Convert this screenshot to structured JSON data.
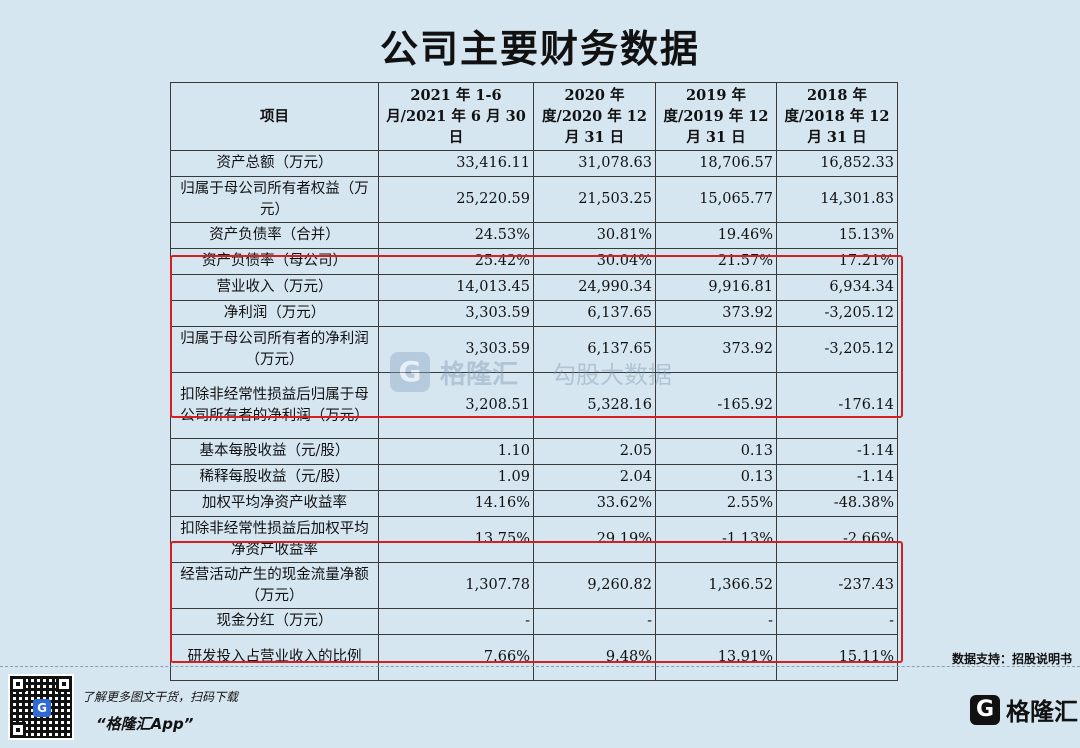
{
  "title": "公司主要财务数据",
  "table": {
    "headers": [
      "项目",
      "2021 年 1-6 月/2021 年 6 月 30 日",
      "2020 年度/2020 年 12 月 31 日",
      "2019 年度/2019 年 12 月 31 日",
      "2018 年度/2018 年 12 月 31 日"
    ],
    "rows": [
      {
        "label": "资产总额（万元）",
        "values": [
          "33,416.11",
          "31,078.63",
          "18,706.57",
          "16,852.33"
        ]
      },
      {
        "label": "归属于母公司所有者权益（万元）",
        "values": [
          "25,220.59",
          "21,503.25",
          "15,065.77",
          "14,301.83"
        ]
      },
      {
        "label": "资产负债率（合并）",
        "values": [
          "24.53%",
          "30.81%",
          "19.46%",
          "15.13%"
        ]
      },
      {
        "label": "资产负债率（母公司）",
        "values": [
          "25.42%",
          "30.04%",
          "21.57%",
          "17.21%"
        ]
      },
      {
        "label": "营业收入（万元）",
        "values": [
          "14,013.45",
          "24,990.34",
          "9,916.81",
          "6,934.34"
        ]
      },
      {
        "label": "净利润（万元）",
        "values": [
          "3,303.59",
          "6,137.65",
          "373.92",
          "-3,205.12"
        ]
      },
      {
        "label": "归属于母公司所有者的净利润（万元）",
        "values": [
          "3,303.59",
          "6,137.65",
          "373.92",
          "-3,205.12"
        ]
      },
      {
        "label": "扣除非经常性损益后归属于母公司所有者的净利润（万元）",
        "values": [
          "3,208.51",
          "5,328.16",
          "-165.92",
          "-176.14"
        ]
      },
      {
        "label": "基本每股收益（元/股）",
        "values": [
          "1.10",
          "2.05",
          "0.13",
          "-1.14"
        ]
      },
      {
        "label": "稀释每股收益（元/股）",
        "values": [
          "1.09",
          "2.04",
          "0.13",
          "-1.14"
        ]
      },
      {
        "label": "加权平均净资产收益率",
        "values": [
          "14.16%",
          "33.62%",
          "2.55%",
          "-48.38%"
        ]
      },
      {
        "label": "扣除非经常性损益后加权平均净资产收益率",
        "values": [
          "13.75%",
          "29.19%",
          "-1.13%",
          "-2.66%"
        ]
      },
      {
        "label": "经营活动产生的现金流量净额（万元）",
        "values": [
          "1,307.78",
          "9,260.82",
          "1,366.52",
          "-237.43"
        ]
      },
      {
        "label": "现金分红（万元）",
        "values": [
          "-",
          "-",
          "-",
          "-"
        ]
      },
      {
        "label": "研发投入占营业收入的比例",
        "values": [
          "7.66%",
          "9.48%",
          "13.91%",
          "15.11%"
        ]
      }
    ]
  },
  "watermark": {
    "logo": "G",
    "brand": "格隆汇",
    "sub": "勾股大数据"
  },
  "source": "数据支持：招股说明书",
  "footer": {
    "promo_line1": "了解更多图文干货，扫码下载",
    "promo_line2": "“格隆汇App”",
    "qr_logo": "G",
    "brand_logo": "G",
    "brand_name": "格隆汇"
  },
  "colors": {
    "background": "#d6e6f1",
    "highlight": "#d42020"
  }
}
